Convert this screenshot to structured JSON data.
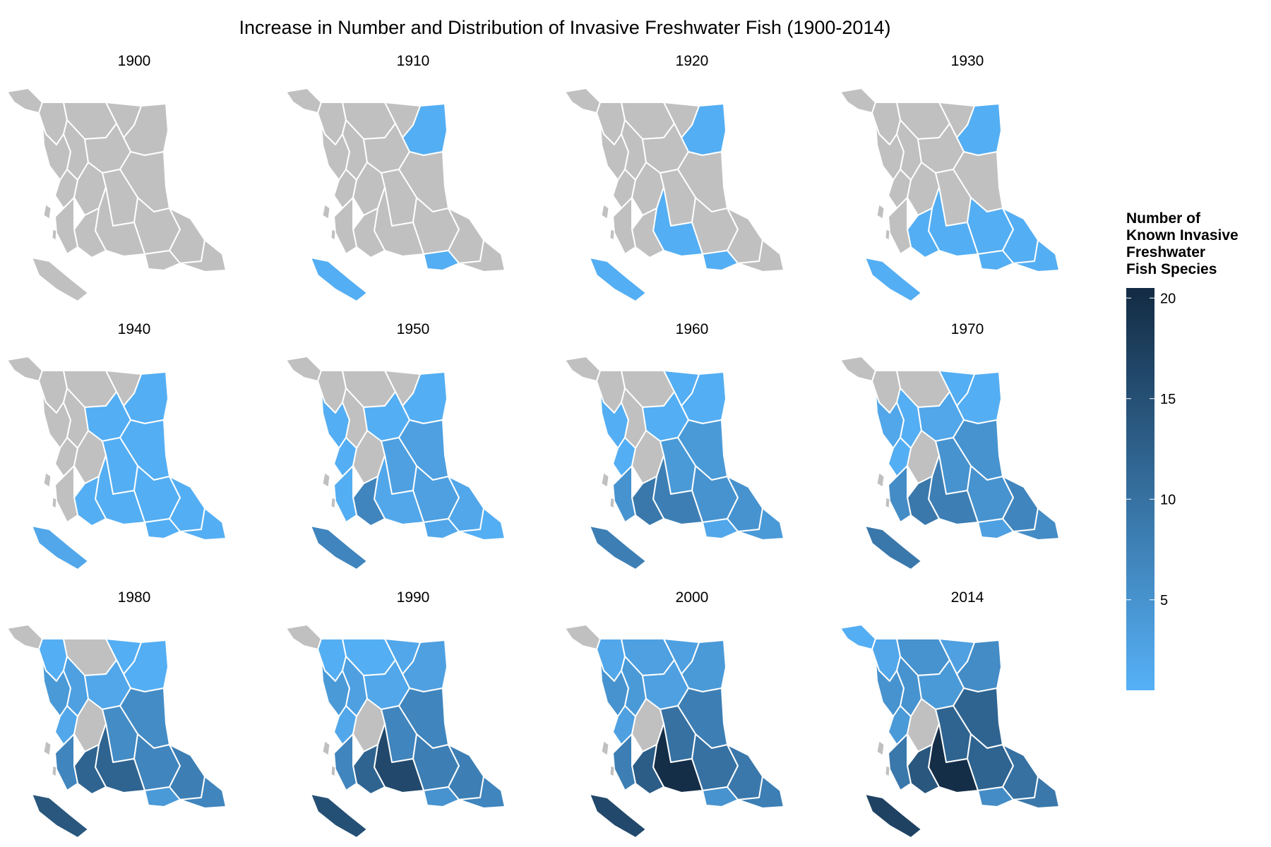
{
  "title": "Increase in Number and Distribution of Invasive Freshwater Fish (1900-2014)",
  "legend": {
    "title_lines": [
      "Number of",
      "Known Invasive",
      "Freshwater",
      "Fish Species"
    ],
    "ticks": [
      "5",
      "10",
      "15",
      "20"
    ],
    "min": 0.5,
    "max": 20.5,
    "color_low": "#56B1F7",
    "color_high": "#132B43"
  },
  "colors": {
    "no_data": "#C0C0C0",
    "border": "#FFFFFF"
  },
  "panels": [
    {
      "year": "1900",
      "values": {
        "R1": 0,
        "R2": 0,
        "R3": 0,
        "R4": 0,
        "R5": 0,
        "R6": 0,
        "R7": 0,
        "R8": 0,
        "R9": 0,
        "R10": 0,
        "R11": 0,
        "R12": 0,
        "R13": 0,
        "R14": 0,
        "R15": 0,
        "R16": 0,
        "R17": 0,
        "R18": 0,
        "R19": 0,
        "R20": 0
      }
    },
    {
      "year": "1910",
      "values": {
        "R1": 0,
        "R2": 0,
        "R3": 1,
        "R4": 0,
        "R5": 0,
        "R6": 0,
        "R7": 0,
        "R8": 0,
        "R9": 0,
        "R10": 0,
        "R11": 0,
        "R12": 0,
        "R13": 0,
        "R14": 0,
        "R15": 0,
        "R16": 0,
        "R17": 0,
        "R18": 1,
        "R19": 1,
        "R20": 0
      }
    },
    {
      "year": "1920",
      "values": {
        "R1": 0,
        "R2": 0,
        "R3": 1,
        "R4": 0,
        "R5": 0,
        "R6": 0,
        "R7": 0,
        "R8": 0,
        "R9": 0,
        "R10": 0,
        "R11": 0,
        "R12": 0,
        "R13": 0,
        "R14": 1,
        "R15": 0,
        "R16": 0,
        "R17": 0,
        "R18": 1,
        "R19": 1,
        "R20": 0
      }
    },
    {
      "year": "1930",
      "values": {
        "R1": 0,
        "R2": 0,
        "R3": 1,
        "R4": 0,
        "R5": 0,
        "R6": 0,
        "R7": 0,
        "R8": 0,
        "R9": 0,
        "R10": 0,
        "R11": 0,
        "R12": 0,
        "R13": 1,
        "R14": 1,
        "R15": 1,
        "R16": 1,
        "R17": 0,
        "R18": 1,
        "R19": 1,
        "R20": 1
      }
    },
    {
      "year": "1940",
      "values": {
        "R1": 0,
        "R2": 0,
        "R3": 1,
        "R4": 0,
        "R5": 0,
        "R6": 0,
        "R7": 0,
        "R8": 1,
        "R9": 1,
        "R10": 0,
        "R11": 0,
        "R12": 1,
        "R13": 1,
        "R14": 1,
        "R15": 1,
        "R16": 1,
        "R17": 0,
        "R18": 2,
        "R19": 1,
        "R20": 1
      }
    },
    {
      "year": "1950",
      "values": {
        "R1": 0,
        "R2": 0,
        "R3": 1,
        "R4": 1,
        "R5": 0,
        "R6": 0,
        "R7": 0,
        "R8": 1,
        "R9": 3,
        "R10": 1,
        "R11": 0,
        "R12": 3,
        "R13": 3,
        "R14": 2,
        "R15": 7,
        "R16": 2,
        "R17": 1,
        "R18": 7,
        "R19": 2,
        "R20": 1
      }
    },
    {
      "year": "1960",
      "values": {
        "R1": 0,
        "R2": 0,
        "R3": 1,
        "R4": 1,
        "R5": 0,
        "R6": 0,
        "R7": 1,
        "R8": 1,
        "R9": 4,
        "R10": 1,
        "R11": 0,
        "R12": 4,
        "R13": 5,
        "R14": 8,
        "R15": 9,
        "R16": 5,
        "R17": 5,
        "R18": 8,
        "R19": 2,
        "R20": 4
      }
    },
    {
      "year": "1970",
      "values": {
        "R1": 0,
        "R2": 0,
        "R3": 1,
        "R4": 2,
        "R5": 0,
        "R6": 1,
        "R7": 1,
        "R8": 2,
        "R9": 5,
        "R10": 1,
        "R11": 0,
        "R12": 5,
        "R13": 5,
        "R14": 8,
        "R15": 9,
        "R16": 7,
        "R17": 6,
        "R18": 9,
        "R19": 3,
        "R20": 6
      }
    },
    {
      "year": "1980",
      "values": {
        "R1": 0,
        "R2": 1,
        "R3": 1,
        "R4": 4,
        "R5": 0,
        "R6": 3,
        "R7": 1,
        "R8": 2,
        "R9": 6,
        "R10": 2,
        "R11": 0,
        "R12": 6,
        "R13": 7,
        "R14": 12,
        "R15": 12,
        "R16": 8,
        "R17": 7,
        "R18": 14,
        "R19": 4,
        "R20": 7
      }
    },
    {
      "year": "1990",
      "values": {
        "R1": 0,
        "R2": 1,
        "R3": 3,
        "R4": 4,
        "R5": 1,
        "R6": 3,
        "R7": 2,
        "R8": 2,
        "R9": 7,
        "R10": 2,
        "R11": 0,
        "R12": 7,
        "R13": 8,
        "R14": 16,
        "R15": 12,
        "R16": 8,
        "R17": 7,
        "R18": 15,
        "R19": 5,
        "R20": 7
      }
    },
    {
      "year": "2000",
      "values": {
        "R1": 0,
        "R2": 2,
        "R3": 4,
        "R4": 5,
        "R5": 3,
        "R6": 4,
        "R7": 3,
        "R8": 3,
        "R9": 8,
        "R10": 3,
        "R11": 0,
        "R12": 10,
        "R13": 10,
        "R14": 20,
        "R15": 13,
        "R16": 9,
        "R17": 8,
        "R18": 16,
        "R19": 5,
        "R20": 8
      }
    },
    {
      "year": "2014",
      "values": {
        "R1": 1,
        "R2": 2,
        "R3": 6,
        "R4": 5,
        "R5": 5,
        "R6": 5,
        "R7": 3,
        "R8": 4,
        "R9": 12,
        "R10": 4,
        "R11": 0,
        "R12": 12,
        "R13": 12,
        "R14": 20,
        "R15": 14,
        "R16": 10,
        "R17": 9,
        "R18": 17,
        "R19": 6,
        "R20": 9
      }
    }
  ]
}
